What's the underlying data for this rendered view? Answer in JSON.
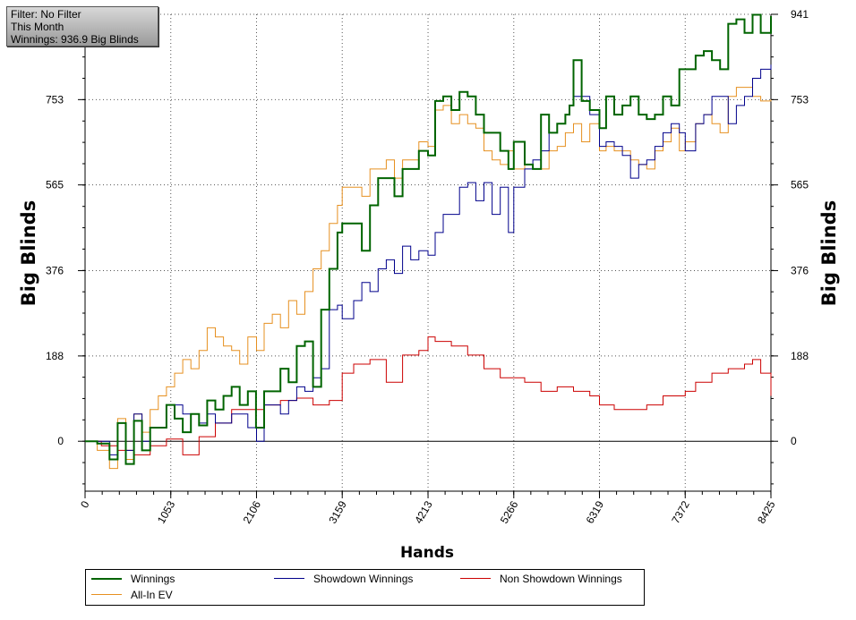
{
  "filter_box": {
    "line1": "Filter: No Filter",
    "line2": "This Month",
    "line3": "Winnings: 936.9 Big Blinds"
  },
  "chart_data": {
    "type": "line",
    "xlabel": "Hands",
    "ylabel": "Big Blinds",
    "xlim": [
      0,
      8425
    ],
    "ylim": [
      -110,
      941
    ],
    "x_ticks": [
      0,
      1053,
      2106,
      3159,
      4213,
      5266,
      6319,
      7372,
      8425
    ],
    "y_ticks": [
      0,
      188,
      376,
      565,
      753,
      941
    ],
    "grid": true,
    "legend_position": "bottom",
    "series": [
      {
        "name": "Winnings",
        "color": "#006400",
        "x": [
          0,
          150,
          300,
          400,
          500,
          600,
          700,
          800,
          1000,
          1100,
          1200,
          1300,
          1400,
          1500,
          1600,
          1700,
          1800,
          1900,
          2000,
          2100,
          2200,
          2400,
          2500,
          2600,
          2700,
          2800,
          2900,
          3000,
          3100,
          3159,
          3300,
          3400,
          3500,
          3600,
          3700,
          3800,
          3900,
          4000,
          4100,
          4213,
          4300,
          4400,
          4500,
          4600,
          4700,
          4800,
          4900,
          5000,
          5100,
          5200,
          5266,
          5400,
          5500,
          5600,
          5700,
          5800,
          5900,
          5950,
          6000,
          6100,
          6200,
          6319,
          6400,
          6500,
          6600,
          6700,
          6800,
          6900,
          7000,
          7100,
          7200,
          7300,
          7372,
          7500,
          7600,
          7700,
          7800,
          7900,
          8000,
          8100,
          8200,
          8300,
          8425
        ],
        "values": [
          0,
          -5,
          -40,
          40,
          -50,
          45,
          -20,
          30,
          80,
          50,
          20,
          60,
          35,
          90,
          70,
          100,
          120,
          80,
          110,
          30,
          110,
          160,
          130,
          210,
          220,
          120,
          290,
          380,
          460,
          480,
          480,
          420,
          520,
          580,
          580,
          540,
          600,
          600,
          640,
          630,
          750,
          760,
          730,
          770,
          760,
          720,
          680,
          680,
          640,
          600,
          660,
          610,
          600,
          720,
          680,
          700,
          720,
          740,
          840,
          750,
          730,
          690,
          760,
          720,
          740,
          760,
          720,
          710,
          720,
          760,
          740,
          820,
          820,
          850,
          860,
          840,
          820,
          920,
          930,
          900,
          940,
          900,
          937
        ]
      },
      {
        "name": "Showdown Winnings",
        "color": "#00008b",
        "x": [
          0,
          150,
          300,
          400,
          500,
          600,
          700,
          800,
          1000,
          1200,
          1400,
          1500,
          1600,
          1800,
          2000,
          2106,
          2200,
          2400,
          2500,
          2600,
          2700,
          2800,
          2900,
          3000,
          3100,
          3159,
          3300,
          3400,
          3500,
          3600,
          3700,
          3800,
          3900,
          4000,
          4100,
          4213,
          4300,
          4400,
          4500,
          4600,
          4700,
          4800,
          4900,
          5000,
          5100,
          5200,
          5266,
          5400,
          5500,
          5600,
          5700,
          5800,
          5900,
          5950,
          6000,
          6100,
          6200,
          6319,
          6400,
          6500,
          6600,
          6700,
          6800,
          6900,
          7000,
          7100,
          7200,
          7300,
          7372,
          7500,
          7600,
          7700,
          7800,
          7900,
          8000,
          8100,
          8200,
          8300,
          8425
        ],
        "values": [
          0,
          0,
          -30,
          40,
          -20,
          60,
          0,
          30,
          80,
          60,
          40,
          60,
          40,
          60,
          30,
          0,
          80,
          60,
          90,
          120,
          110,
          140,
          160,
          290,
          300,
          270,
          310,
          350,
          330,
          380,
          400,
          370,
          430,
          400,
          420,
          410,
          460,
          500,
          500,
          560,
          570,
          530,
          570,
          500,
          560,
          460,
          560,
          600,
          620,
          640,
          680,
          700,
          720,
          740,
          760,
          760,
          720,
          650,
          660,
          650,
          630,
          580,
          610,
          620,
          650,
          680,
          700,
          680,
          640,
          700,
          720,
          760,
          760,
          700,
          740,
          760,
          800,
          820,
          830
        ]
      },
      {
        "name": "Non Showdown Winnings",
        "color": "#cc0000",
        "x": [
          0,
          200,
          400,
          600,
          800,
          1000,
          1200,
          1400,
          1600,
          1800,
          2000,
          2200,
          2400,
          2600,
          2800,
          3000,
          3159,
          3300,
          3500,
          3700,
          3900,
          4100,
          4213,
          4300,
          4500,
          4700,
          4900,
          5100,
          5266,
          5400,
          5600,
          5800,
          6000,
          6200,
          6319,
          6500,
          6700,
          6900,
          7100,
          7372,
          7500,
          7700,
          7900,
          8100,
          8200,
          8300,
          8425
        ],
        "values": [
          0,
          -10,
          -20,
          -30,
          -10,
          5,
          -30,
          10,
          40,
          70,
          70,
          80,
          90,
          95,
          80,
          90,
          150,
          170,
          180,
          130,
          190,
          200,
          230,
          220,
          210,
          190,
          160,
          140,
          140,
          130,
          110,
          120,
          110,
          100,
          80,
          70,
          70,
          80,
          100,
          110,
          130,
          150,
          160,
          170,
          180,
          150,
          100
        ]
      },
      {
        "name": "All-In EV",
        "color": "#e69020",
        "x": [
          0,
          150,
          300,
          400,
          500,
          600,
          700,
          800,
          900,
          1000,
          1100,
          1200,
          1300,
          1400,
          1500,
          1600,
          1700,
          1800,
          1900,
          2000,
          2106,
          2200,
          2300,
          2400,
          2500,
          2600,
          2700,
          2800,
          2900,
          3000,
          3100,
          3159,
          3300,
          3400,
          3500,
          3600,
          3700,
          3800,
          3900,
          4000,
          4100,
          4213,
          4300,
          4400,
          4500,
          4600,
          4700,
          4800,
          4900,
          5000,
          5100,
          5200,
          5266,
          5400,
          5500,
          5600,
          5700,
          5800,
          5900,
          6000,
          6100,
          6200,
          6319,
          6400,
          6500,
          6600,
          6700,
          6800,
          6900,
          7000,
          7100,
          7200,
          7300,
          7372,
          7500,
          7600,
          7700,
          7800,
          7900,
          8000,
          8100,
          8200,
          8300,
          8425
        ],
        "values": [
          0,
          -20,
          -60,
          50,
          -40,
          60,
          20,
          70,
          100,
          120,
          150,
          180,
          160,
          200,
          250,
          230,
          210,
          200,
          170,
          230,
          200,
          260,
          280,
          250,
          310,
          280,
          330,
          380,
          420,
          480,
          520,
          560,
          560,
          540,
          600,
          600,
          620,
          580,
          620,
          620,
          660,
          650,
          730,
          740,
          700,
          720,
          700,
          690,
          640,
          620,
          610,
          640,
          600,
          610,
          600,
          600,
          640,
          650,
          680,
          700,
          660,
          700,
          640,
          650,
          640,
          640,
          620,
          610,
          600,
          640,
          660,
          690,
          640,
          660,
          700,
          720,
          700,
          680,
          760,
          780,
          780,
          760,
          750,
          753
        ]
      }
    ]
  }
}
